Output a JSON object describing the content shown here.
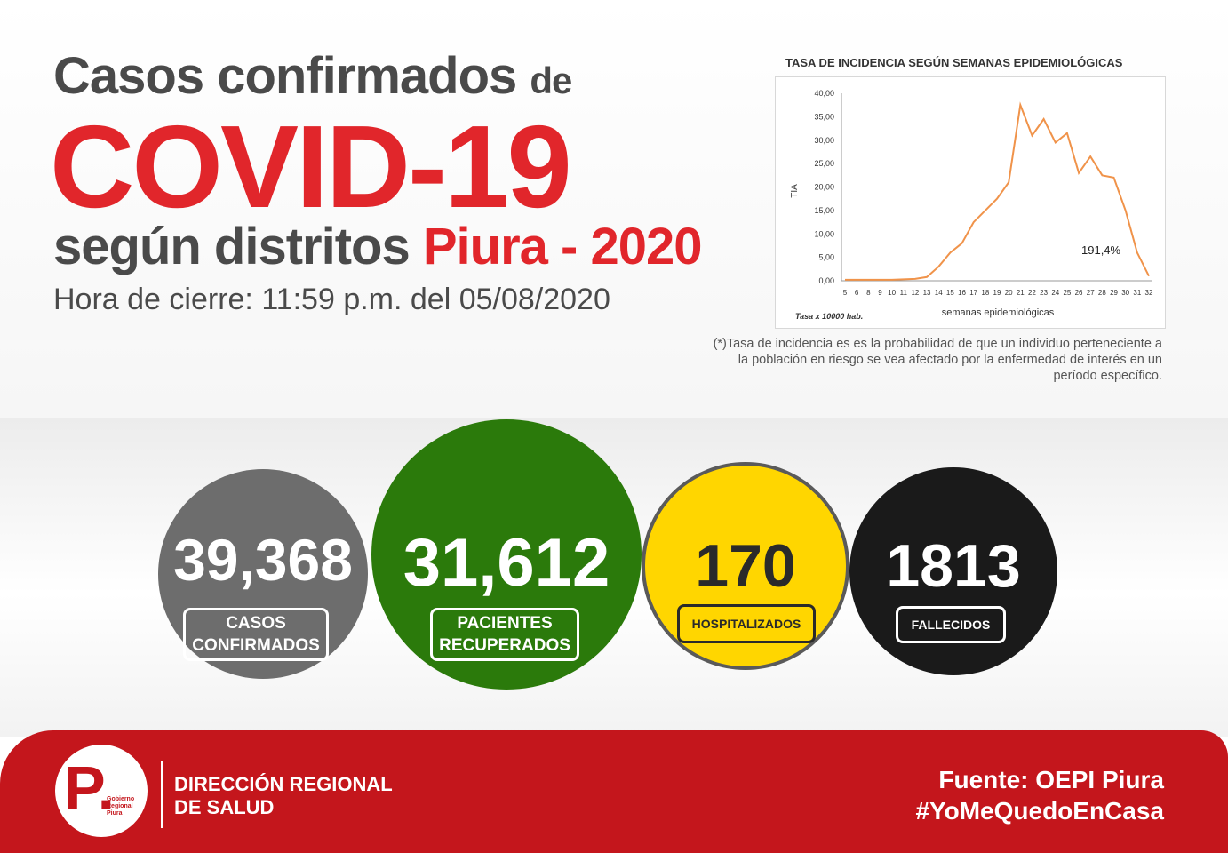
{
  "header": {
    "line1_main": "Casos confirmados",
    "line1_small": "de",
    "line2": "COVID-19",
    "line3_main": "según distritos",
    "line3_red": "Piura - 2020",
    "closing": "Hora de cierre: 11:59 p.m. del 05/08/2020"
  },
  "chart_data": {
    "type": "line",
    "title": "TASA DE INCIDENCIA SEGÚN SEMANAS EPIDEMIOLÓGICAS",
    "xlabel": "semanas epidemiológicas",
    "ylabel": "TIA",
    "unit_note": "Tasa x 10000 hab.",
    "annotation": "191,4%",
    "ylim": [
      0,
      40
    ],
    "yticks": [
      "0,00",
      "5,00",
      "10,00",
      "15,00",
      "20,00",
      "25,00",
      "30,00",
      "35,00",
      "40,00"
    ],
    "categories": [
      "5",
      "6",
      "8",
      "9",
      "10",
      "11",
      "12",
      "13",
      "14",
      "15",
      "16",
      "17",
      "18",
      "19",
      "20",
      "21",
      "22",
      "23",
      "24",
      "25",
      "26",
      "27",
      "28",
      "29",
      "30",
      "31",
      "32"
    ],
    "values": [
      0.2,
      0.2,
      0.2,
      0.2,
      0.2,
      0.3,
      0.4,
      0.8,
      3.0,
      6.0,
      8.0,
      12.5,
      15.0,
      17.5,
      21.0,
      37.5,
      31.0,
      34.5,
      29.5,
      31.5,
      23.0,
      26.5,
      22.5,
      22.0,
      15.0,
      6.0,
      1.0
    ],
    "color": "#f0934a",
    "grid": false
  },
  "note": "(*)Tasa de incidencia es es la probabilidad de que un individuo perteneciente a la población en riesgo se vea afectado por la enfermedad de interés en un período específico.",
  "stats": {
    "confirmados": {
      "value": "39,368",
      "label": "CASOS CONFIRMADOS",
      "color": "#6d6d6d"
    },
    "recuperados": {
      "value": "31,612",
      "label": "PACIENTES RECUPERADOS",
      "color": "#2b7a0b"
    },
    "hospitalizados": {
      "value": "170",
      "label": "HOSPITALIZADOS",
      "color": "#ffd600"
    },
    "fallecidos": {
      "value": "1813",
      "label": "FALLECIDOS",
      "color": "#1a1a1a"
    }
  },
  "footer": {
    "logo_letter": "P.",
    "logo_text": "Gobierno Regional Piura",
    "org_line1": "DIRECCIÓN REGIONAL",
    "org_line2": "DE SALUD",
    "source": "Fuente: OEPI Piura",
    "hashtag": "#YoMeQuedoEnCasa",
    "color": "#c4161c"
  }
}
